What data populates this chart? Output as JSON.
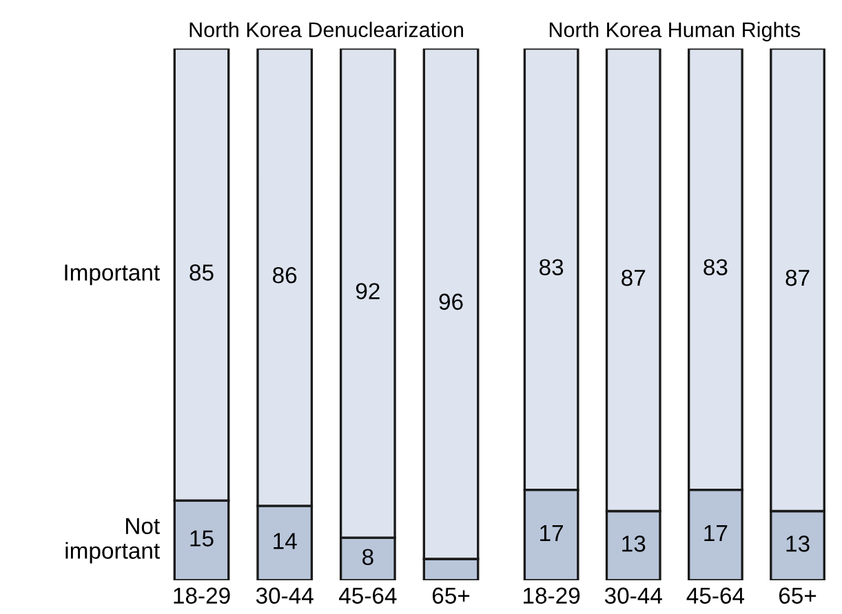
{
  "chart_data": [
    {
      "type": "bar",
      "title": "North Korea Denuclearization",
      "stacked": true,
      "categories": [
        "18-29",
        "30-44",
        "45-64",
        "65+"
      ],
      "series": [
        {
          "name": "Not\nimportant",
          "color": "#b9c6da",
          "values": [
            15,
            14,
            8,
            4
          ],
          "value_labels": [
            "15",
            "14",
            "8",
            null
          ]
        },
        {
          "name": "Important",
          "color": "#dde4ef",
          "values": [
            85,
            86,
            92,
            96
          ],
          "value_labels": [
            "85",
            "86",
            "92",
            "96"
          ]
        }
      ],
      "ylim": [
        0,
        100
      ],
      "tick_labels": "x",
      "grid": false,
      "legend": false
    },
    {
      "type": "bar",
      "title": "North Korea Human Rights",
      "stacked": true,
      "categories": [
        "18-29",
        "30-44",
        "45-64",
        "65+"
      ],
      "series": [
        {
          "color": "#b9c6da",
          "values": [
            17,
            13,
            17,
            13
          ],
          "value_labels": [
            "17",
            "13",
            "17",
            "13"
          ]
        },
        {
          "color": "#dde4ef",
          "values": [
            83,
            87,
            83,
            87
          ],
          "value_labels": [
            "83",
            "87",
            "83",
            "87"
          ]
        }
      ],
      "ylim": [
        0,
        100
      ],
      "tick_labels": "x",
      "grid": false,
      "legend": false
    }
  ]
}
